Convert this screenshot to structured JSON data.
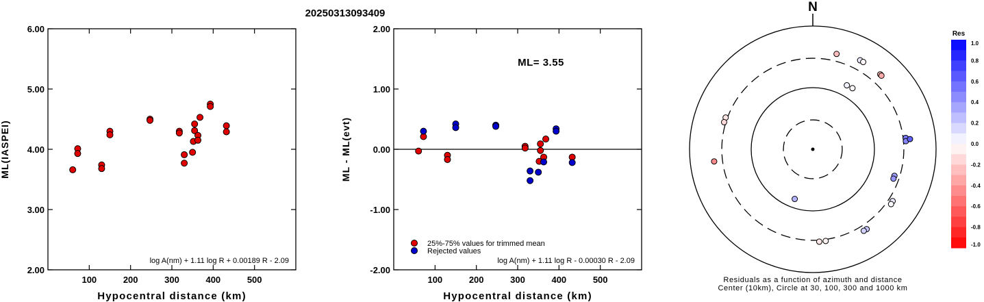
{
  "title": "20250313093409",
  "chart_data": [
    {
      "type": "scatter",
      "xlabel": "Hypocentral distance (km)",
      "ylabel": "ML(IASPEI)",
      "xlim": [
        0,
        600
      ],
      "ylim": [
        2.0,
        6.0
      ],
      "x_ticks": [
        "100",
        "200",
        "300",
        "400",
        "500"
      ],
      "y_ticks": [
        "2.00",
        "3.00",
        "4.00",
        "5.00",
        "6.00"
      ],
      "formula": "log A(nm) + 1.11 log R + 0.00189 R - 2.09",
      "marker_color": "#e00000",
      "points": [
        {
          "x": 60,
          "y": 3.66
        },
        {
          "x": 72,
          "y": 4.01
        },
        {
          "x": 72,
          "y": 3.93
        },
        {
          "x": 130,
          "y": 3.74
        },
        {
          "x": 130,
          "y": 3.68
        },
        {
          "x": 150,
          "y": 4.3
        },
        {
          "x": 150,
          "y": 4.24
        },
        {
          "x": 247,
          "y": 4.5
        },
        {
          "x": 247,
          "y": 4.48
        },
        {
          "x": 318,
          "y": 4.3
        },
        {
          "x": 318,
          "y": 4.27
        },
        {
          "x": 330,
          "y": 3.91
        },
        {
          "x": 330,
          "y": 3.77
        },
        {
          "x": 350,
          "y": 3.95
        },
        {
          "x": 352,
          "y": 4.13
        },
        {
          "x": 355,
          "y": 4.42
        },
        {
          "x": 355,
          "y": 4.31
        },
        {
          "x": 363,
          "y": 4.23
        },
        {
          "x": 363,
          "y": 4.15
        },
        {
          "x": 368,
          "y": 4.53
        },
        {
          "x": 393,
          "y": 4.75
        },
        {
          "x": 393,
          "y": 4.71
        },
        {
          "x": 432,
          "y": 4.39
        },
        {
          "x": 432,
          "y": 4.29
        }
      ]
    },
    {
      "type": "scatter",
      "xlabel": "Hypocentral distance (km)",
      "ylabel": "ML - ML(evt)",
      "xlim": [
        0,
        600
      ],
      "ylim": [
        -2.0,
        2.0
      ],
      "x_ticks": [
        "100",
        "200",
        "300",
        "400",
        "500"
      ],
      "y_ticks": [
        "-2.00",
        "-1.00",
        "0.00",
        "1.00",
        "2.00"
      ],
      "annotation": "ML= 3.55",
      "formula": "log A(nm) + 1.11 log R - 0.00030 R - 2.09",
      "zero_line": true,
      "legend": [
        {
          "label": "25%-75% values for trimmed mean",
          "color": "#e00000"
        },
        {
          "label": "Rejected values",
          "color": "#0000cc"
        }
      ],
      "series": [
        {
          "name": "25%-75% values for trimmed mean",
          "color": "#e00000",
          "points": [
            {
              "x": 60,
              "y": -0.03
            },
            {
              "x": 72,
              "y": 0.21
            },
            {
              "x": 130,
              "y": -0.1
            },
            {
              "x": 130,
              "y": -0.17
            },
            {
              "x": 318,
              "y": 0.05
            },
            {
              "x": 318,
              "y": 0.02
            },
            {
              "x": 352,
              "y": -0.2
            },
            {
              "x": 355,
              "y": 0.09
            },
            {
              "x": 355,
              "y": -0.02
            },
            {
              "x": 363,
              "y": -0.13
            },
            {
              "x": 368,
              "y": 0.17
            },
            {
              "x": 432,
              "y": -0.13
            }
          ]
        },
        {
          "name": "Rejected values",
          "color": "#0000cc",
          "points": [
            {
              "x": 72,
              "y": 0.3
            },
            {
              "x": 150,
              "y": 0.42
            },
            {
              "x": 150,
              "y": 0.36
            },
            {
              "x": 247,
              "y": 0.4
            },
            {
              "x": 247,
              "y": 0.38
            },
            {
              "x": 330,
              "y": -0.36
            },
            {
              "x": 330,
              "y": -0.52
            },
            {
              "x": 350,
              "y": -0.38
            },
            {
              "x": 363,
              "y": -0.21
            },
            {
              "x": 393,
              "y": 0.34
            },
            {
              "x": 393,
              "y": 0.3
            },
            {
              "x": 432,
              "y": -0.22
            }
          ]
        }
      ]
    },
    {
      "type": "polar-scatter",
      "north_label": "N",
      "caption_line1": "Residuals as a function of azimuth and distance",
      "caption_line2": "Center (10km), Circle at 30, 100, 300 and 1000 km",
      "rings_km": [
        30,
        100,
        300,
        1000
      ],
      "ring_styles": [
        "dashed",
        "solid",
        "dashed",
        "solid"
      ],
      "colorbar": {
        "title": "Res",
        "ticks": [
          "1.0",
          "0.8",
          "0.6",
          "0.4",
          "0.2",
          "0.0",
          "-0.2",
          "-0.4",
          "-0.6",
          "-0.8",
          "-1.0"
        ]
      },
      "stations": [
        {
          "az": 14,
          "dist": 393,
          "res": -0.26
        },
        {
          "az": 28,
          "dist": 432,
          "res": 0.08
        },
        {
          "az": 30,
          "dist": 432,
          "res": -0.03
        },
        {
          "az": 42,
          "dist": 432,
          "res": -0.23
        },
        {
          "az": 43,
          "dist": 430,
          "res": -0.33
        },
        {
          "az": 28,
          "dist": 150,
          "res": 0.05
        },
        {
          "az": 33,
          "dist": 152,
          "res": -0.02
        },
        {
          "az": 290,
          "dist": 320,
          "res": -0.1
        },
        {
          "az": 287,
          "dist": 320,
          "res": -0.15
        },
        {
          "az": 83,
          "dist": 330,
          "res": 0.52
        },
        {
          "az": 85,
          "dist": 328,
          "res": 0.48
        },
        {
          "az": 84,
          "dist": 385,
          "res": 0.62
        },
        {
          "az": 108,
          "dist": 247,
          "res": 0.38
        },
        {
          "az": 110,
          "dist": 247,
          "res": 0.42
        },
        {
          "az": 123,
          "dist": 350,
          "res": 0.08
        },
        {
          "az": 125,
          "dist": 355,
          "res": 0.02
        },
        {
          "az": 146,
          "dist": 365,
          "res": 0.22
        },
        {
          "az": 148,
          "dist": 363,
          "res": 0.18
        },
        {
          "az": 172,
          "dist": 318,
          "res": -0.05
        },
        {
          "az": 176,
          "dist": 318,
          "res": -0.1
        },
        {
          "az": 263,
          "dist": 410,
          "res": -0.45
        },
        {
          "az": 200,
          "dist": 72,
          "res": 0.3
        }
      ]
    }
  ]
}
